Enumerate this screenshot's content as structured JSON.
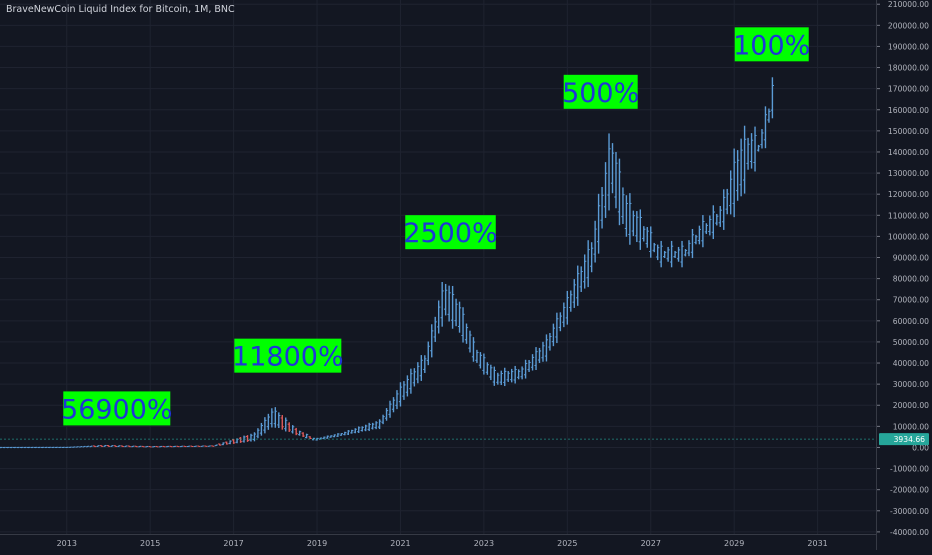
{
  "title": "BraveNewCoin Liquid Index for Bitcoin, 1M, BNC",
  "current_price_label": "3934.66",
  "colors": {
    "background": "#131722",
    "up_bar": "#5b9bd5",
    "down_bar": "#e05a5a",
    "annotation_bg": "#00ff00",
    "annotation_text": "#1f36d6",
    "price_line": "#26a69a"
  },
  "chart_data": {
    "type": "bar",
    "subtype": "ohlc",
    "title": "BraveNewCoin Liquid Index for Bitcoin, 1M, BNC",
    "xlabel": "",
    "ylabel": "",
    "x_ticks": [
      "2013",
      "2015",
      "2017",
      "2019",
      "2021",
      "2023",
      "2025",
      "2027",
      "2029",
      "2031"
    ],
    "y_ticks": [
      210000,
      200000,
      190000,
      180000,
      170000,
      160000,
      150000,
      140000,
      130000,
      120000,
      110000,
      100000,
      90000,
      80000,
      70000,
      60000,
      50000,
      40000,
      30000,
      20000,
      10000,
      0,
      -10000,
      -20000,
      -30000,
      -40000
    ],
    "ylim": [
      -41000,
      212000
    ],
    "xlim": [
      2011.4,
      2032.4
    ],
    "grid": true,
    "legend": "none",
    "current_price": 3934.66,
    "annotations": [
      {
        "text": "56900%",
        "x": 2014.2,
        "y": 18500
      },
      {
        "text": "11800%",
        "x": 2018.3,
        "y": 43500
      },
      {
        "text": "2500%",
        "x": 2022.2,
        "y": 102000
      },
      {
        "text": "500%",
        "x": 2025.8,
        "y": 168500
      },
      {
        "text": "100%",
        "x": 2029.9,
        "y": 191000
      }
    ],
    "anchors": [
      {
        "x": 2011.0,
        "low": 5,
        "high": 30
      },
      {
        "x": 2013.0,
        "low": 10,
        "high": 120
      },
      {
        "x": 2013.9,
        "low": 400,
        "high": 1100
      },
      {
        "x": 2015.0,
        "low": 200,
        "high": 500
      },
      {
        "x": 2016.5,
        "low": 500,
        "high": 800
      },
      {
        "x": 2017.5,
        "low": 3000,
        "high": 7000
      },
      {
        "x": 2017.95,
        "low": 10000,
        "high": 19500
      },
      {
        "x": 2018.5,
        "low": 6000,
        "high": 9000
      },
      {
        "x": 2018.95,
        "low": 3200,
        "high": 4200
      },
      {
        "x": 2019.6,
        "low": 5500,
        "high": 7000
      },
      {
        "x": 2020.5,
        "low": 9000,
        "high": 13000
      },
      {
        "x": 2021.0,
        "low": 20000,
        "high": 30000
      },
      {
        "x": 2021.6,
        "low": 35000,
        "high": 45000
      },
      {
        "x": 2022.05,
        "low": 62000,
        "high": 80000
      },
      {
        "x": 2022.4,
        "low": 55000,
        "high": 70000
      },
      {
        "x": 2022.8,
        "low": 40000,
        "high": 48000
      },
      {
        "x": 2023.3,
        "low": 29000,
        "high": 36000
      },
      {
        "x": 2023.9,
        "low": 32000,
        "high": 38000
      },
      {
        "x": 2024.5,
        "low": 42000,
        "high": 52000
      },
      {
        "x": 2025.0,
        "low": 60000,
        "high": 72000
      },
      {
        "x": 2025.6,
        "low": 82000,
        "high": 100000
      },
      {
        "x": 2026.05,
        "low": 120000,
        "high": 150000
      },
      {
        "x": 2026.4,
        "low": 100000,
        "high": 120000
      },
      {
        "x": 2026.9,
        "low": 95000,
        "high": 105000
      },
      {
        "x": 2027.2,
        "low": 88000,
        "high": 95000
      },
      {
        "x": 2027.8,
        "low": 88000,
        "high": 95000
      },
      {
        "x": 2028.2,
        "low": 97000,
        "high": 106000
      },
      {
        "x": 2028.7,
        "low": 105000,
        "high": 115000
      },
      {
        "x": 2029.1,
        "low": 115000,
        "high": 145000
      },
      {
        "x": 2029.35,
        "low": 130000,
        "high": 150000
      },
      {
        "x": 2029.6,
        "low": 138000,
        "high": 146000
      },
      {
        "x": 2029.82,
        "low": 150000,
        "high": 162000
      },
      {
        "x": 2029.95,
        "low": 158000,
        "high": 180000
      }
    ],
    "down_x_ranges": [
      [
        2013.6,
        2017.4
      ],
      [
        2018.0,
        2018.9
      ]
    ]
  }
}
